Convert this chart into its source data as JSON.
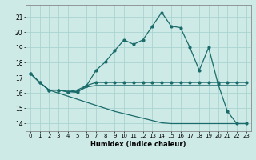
{
  "xlabel": "Humidex (Indice chaleur)",
  "x_ticks": [
    0,
    1,
    2,
    3,
    4,
    5,
    6,
    7,
    8,
    9,
    10,
    11,
    12,
    13,
    14,
    15,
    16,
    17,
    18,
    19,
    20,
    21,
    22,
    23
  ],
  "y_ticks": [
    14,
    15,
    16,
    17,
    18,
    19,
    20,
    21
  ],
  "xlim": [
    -0.5,
    23.5
  ],
  "ylim": [
    13.5,
    21.8
  ],
  "bg_color": "#ceeae7",
  "grid_color": "#aad4d0",
  "line_color": "#1a6b6b",
  "line1": [
    17.3,
    16.7,
    16.2,
    16.2,
    16.1,
    16.05,
    16.5,
    17.5,
    18.05,
    18.8,
    19.5,
    19.2,
    19.5,
    20.4,
    21.3,
    20.4,
    20.3,
    19.0,
    17.5,
    19.0,
    16.6,
    14.8,
    14.0,
    14.0
  ],
  "line2": [
    17.3,
    16.7,
    16.2,
    16.2,
    16.1,
    16.2,
    16.5,
    16.7,
    16.7,
    16.7,
    16.7,
    16.7,
    16.7,
    16.7,
    16.7,
    16.7,
    16.7,
    16.7,
    16.7,
    16.7,
    16.7,
    16.7,
    16.7,
    16.7
  ],
  "line3": [
    17.3,
    16.7,
    16.2,
    16.2,
    16.1,
    16.1,
    16.4,
    16.5,
    16.5,
    16.5,
    16.5,
    16.5,
    16.5,
    16.5,
    16.5,
    16.5,
    16.5,
    16.5,
    16.5,
    16.5,
    16.5,
    16.5,
    16.5,
    16.5
  ],
  "line4": [
    17.3,
    16.7,
    16.2,
    16.0,
    15.8,
    15.6,
    15.4,
    15.2,
    15.0,
    14.8,
    14.65,
    14.5,
    14.35,
    14.2,
    14.05,
    14.0,
    14.0,
    14.0,
    14.0,
    14.0,
    14.0,
    14.0,
    14.0,
    14.0
  ]
}
